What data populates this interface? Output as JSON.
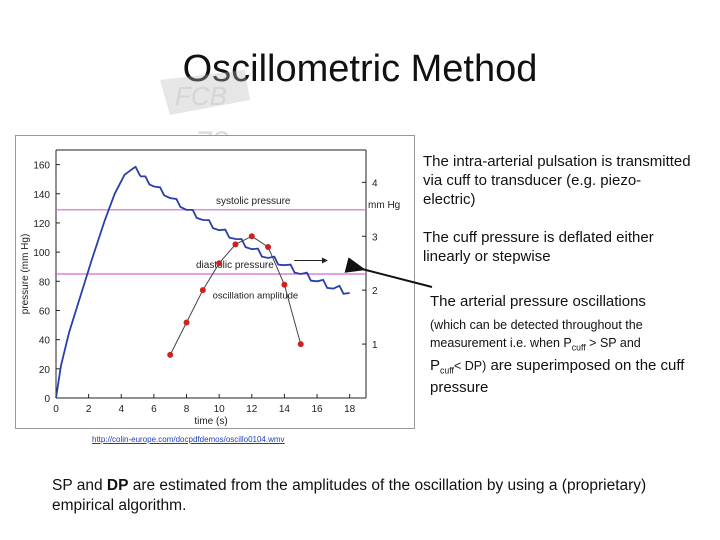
{
  "slide": {
    "title": "Oscillometric Method",
    "notes": {
      "pulsation": "The intra-arterial pulsation is transmitted via cuff to transducer (e.g. piezo-electric)",
      "deflation": "The cuff pressure is deflated either linearly or stepwise",
      "oscillations_main": "The arterial pressure oscillations",
      "oscillations_detail_1": "(which can be detected throughout the measurement i.e. when P",
      "cuff_sub": "cuff",
      "oscillations_detail_2": " > SP and",
      "oscillations_detail_3": "< DP)",
      "oscillations_detail_4": " are superimposed on the cuff pressure",
      "p_letter": "P"
    },
    "source_url": "http://colin-europe.com/docpdfdemos/oscillo0104.wmv",
    "bottom_text_prefix": "SP and ",
    "bottom_text_dp": "DP",
    "bottom_text_suffix": " are estimated from the amplitudes of the oscillation by using a (proprietary) empirical algorithm."
  },
  "chart_data": {
    "type": "line",
    "xlabel": "time (s)",
    "ylabel": "pressure (mm Hg)",
    "xlim": [
      0,
      19
    ],
    "ylim": [
      0,
      170
    ],
    "xticks": [
      0,
      2,
      4,
      6,
      8,
      10,
      12,
      14,
      16,
      18
    ],
    "yticks": [
      0,
      20,
      40,
      60,
      80,
      100,
      120,
      140,
      160
    ],
    "y2label": "mm Hg",
    "y2ticks": [
      1,
      2,
      3,
      4
    ],
    "y2lim": [
      0,
      4.6
    ],
    "reference_lines": [
      {
        "name": "systolic pressure",
        "y": 129,
        "color": "#d36ad3"
      },
      {
        "name": "diastolic pressure",
        "y": 85,
        "color": "#d36ad3"
      }
    ],
    "series": [
      {
        "kind": "cuff pressure",
        "color": "#2a3ea8",
        "x": [
          0,
          0.3,
          0.8,
          1.5,
          2.2,
          3.0,
          3.6,
          4.2,
          4.8,
          5.2,
          6,
          7,
          8,
          9,
          10,
          11,
          12,
          13,
          14,
          15,
          16,
          17,
          18
        ],
        "y": [
          0,
          22,
          45,
          70,
          95,
          122,
          140,
          153,
          158,
          152,
          145,
          137,
          129,
          122,
          115,
          109,
          102,
          96,
          91,
          85,
          80,
          75,
          72
        ]
      },
      {
        "kind": "oscillation amplitude",
        "color": "#cc2222",
        "x": [
          7,
          8,
          9,
          10,
          11,
          12,
          13,
          14,
          15
        ],
        "y2": [
          0.8,
          1.4,
          2.0,
          2.5,
          2.85,
          3.0,
          2.8,
          2.1,
          1.0
        ]
      }
    ],
    "annotations": [
      "systolic pressure",
      "diastolic pressure",
      "oscillation amplitude"
    ],
    "grid": false,
    "legend": "none"
  }
}
